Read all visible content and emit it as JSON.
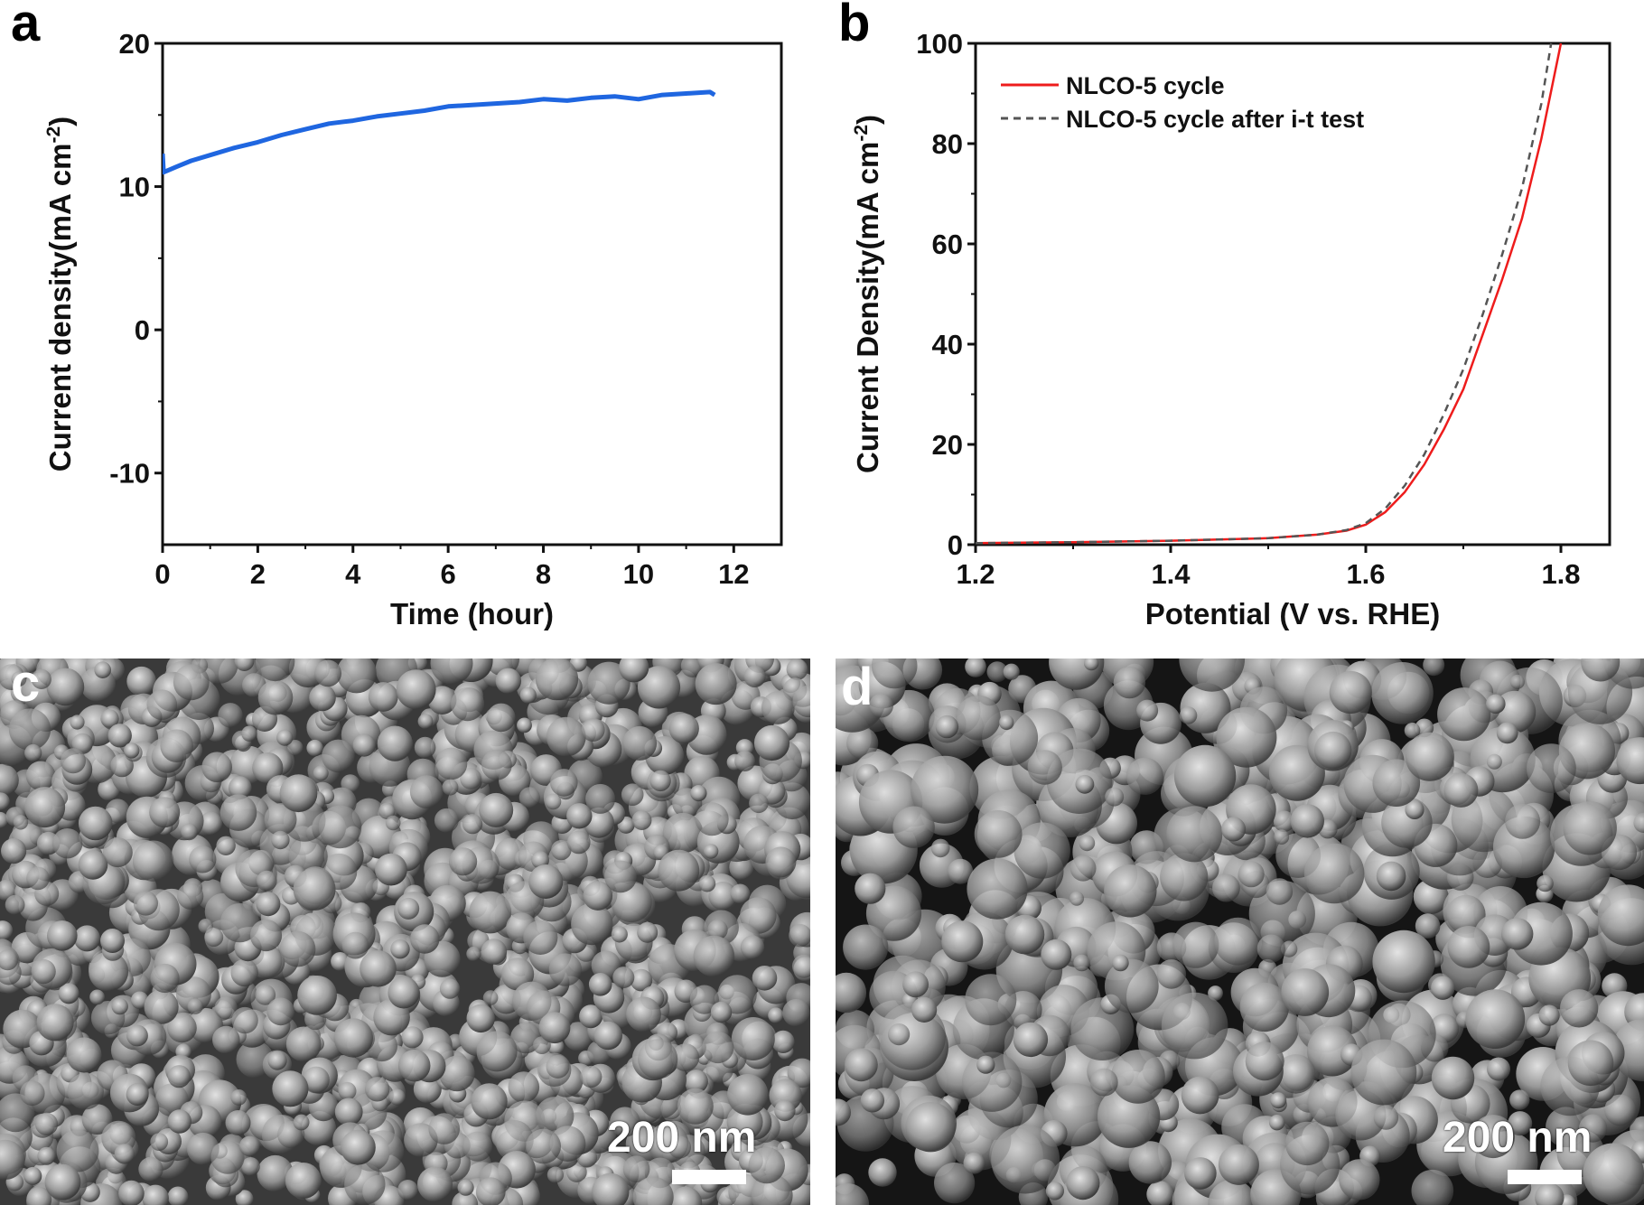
{
  "panels": {
    "a": "a",
    "b": "b",
    "c": "c",
    "d": "d"
  },
  "chart_data": [
    {
      "type": "line",
      "panel": "a",
      "xlabel": "Time (hour)",
      "ylabel": "Current density(mA cm",
      "ylabel_sup": "-2",
      "ylabel_close": ")",
      "xlim": [
        0,
        13
      ],
      "ylim": [
        -15,
        20
      ],
      "xticks": [
        0,
        2,
        4,
        6,
        8,
        10,
        12
      ],
      "yticks": [
        -10,
        0,
        10,
        20
      ],
      "grid": false,
      "series": [
        {
          "color": "#1f66e0",
          "x": [
            0,
            0.02,
            0.3,
            0.6,
            1,
            1.5,
            2,
            2.5,
            3,
            3.5,
            4,
            4.5,
            5,
            5.5,
            6,
            6.5,
            7,
            7.5,
            8,
            8.5,
            9,
            9.5,
            10,
            10.5,
            11,
            11.5,
            11.6
          ],
          "y": [
            12.3,
            11.0,
            11.4,
            11.8,
            12.2,
            12.7,
            13.1,
            13.6,
            14.0,
            14.4,
            14.6,
            14.9,
            15.1,
            15.3,
            15.6,
            15.7,
            15.8,
            15.9,
            16.1,
            16.0,
            16.2,
            16.3,
            16.1,
            16.4,
            16.5,
            16.6,
            16.4
          ]
        }
      ]
    },
    {
      "type": "line",
      "panel": "b",
      "xlabel": "Potential (V vs. RHE)",
      "ylabel": "Current Density(mA cm",
      "ylabel_sup": "-2",
      "ylabel_close": ")",
      "xlim": [
        1.2,
        1.85
      ],
      "ylim": [
        0,
        100
      ],
      "xticks": [
        1.2,
        1.4,
        1.6,
        1.8
      ],
      "yticks": [
        0,
        20,
        40,
        60,
        80,
        100
      ],
      "grid": false,
      "legend": "top-left",
      "series": [
        {
          "name": "NLCO-5 cycle",
          "color": "#ee1c1c",
          "style": "solid",
          "x": [
            1.2,
            1.3,
            1.4,
            1.5,
            1.55,
            1.58,
            1.6,
            1.62,
            1.64,
            1.66,
            1.68,
            1.7,
            1.72,
            1.74,
            1.76,
            1.78,
            1.8
          ],
          "y": [
            0.3,
            0.5,
            0.8,
            1.3,
            2.0,
            2.8,
            4.0,
            6.5,
            10.5,
            16,
            23,
            31,
            42,
            53,
            65,
            81,
            100
          ]
        },
        {
          "name": "NLCO-5 cycle after i-t test",
          "color": "#555555",
          "style": "dashed",
          "x": [
            1.2,
            1.3,
            1.4,
            1.5,
            1.55,
            1.58,
            1.6,
            1.62,
            1.64,
            1.66,
            1.68,
            1.7,
            1.72,
            1.74,
            1.76,
            1.78,
            1.79
          ],
          "y": [
            0.3,
            0.5,
            0.8,
            1.3,
            2.0,
            2.9,
            4.3,
            7.2,
            11.8,
            18,
            26,
            35,
            46,
            58,
            71,
            88,
            100
          ]
        }
      ]
    }
  ],
  "sem": {
    "c": {
      "scale_label": "200 nm"
    },
    "d": {
      "scale_label": "200 nm"
    }
  }
}
